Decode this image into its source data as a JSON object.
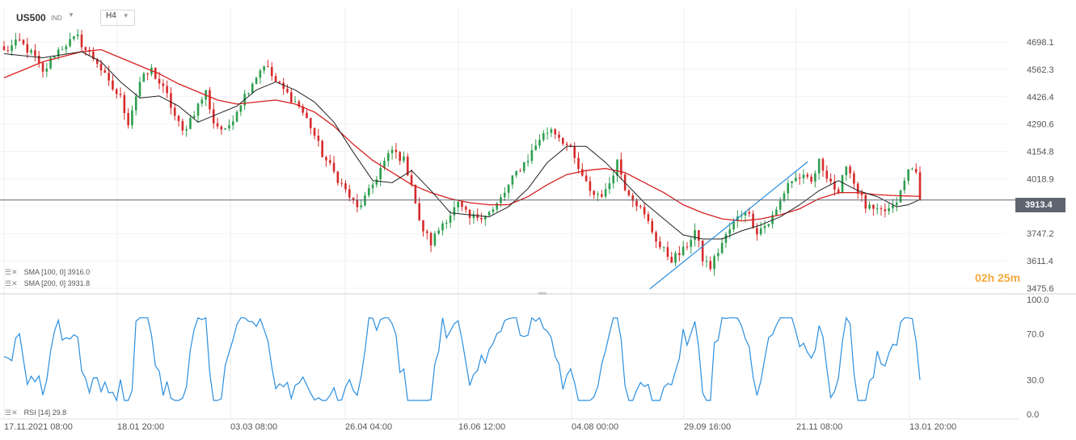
{
  "header": {
    "symbol": "US500",
    "exchange": "IND",
    "timeframe": "H4"
  },
  "price_tag": "3913.4",
  "countdown": "02h 25m",
  "indicators": {
    "sma100": "SMA [100, 0] 3916.0",
    "sma200": "SMA [200, 0] 3931.8",
    "rsi": "RSI [14] 29.8"
  },
  "colors": {
    "candle_up": "#2e9e4f",
    "candle_down": "#d62b2b",
    "sma100": "#222222",
    "sma200": "#d62020",
    "trendline": "#2a8fe0",
    "rsi": "#2a8fe0",
    "price_line": "#5e6470",
    "countdown": "#f2a93b"
  },
  "chart_data": [
    {
      "type": "candlestick",
      "symbol": "US500",
      "timeframe": "H4",
      "y_ticks": [
        4698.1,
        4562.3,
        4426.4,
        4290.6,
        4154.8,
        4018.9,
        3883.1,
        3747.2,
        3611.4,
        3475.6
      ],
      "y_tick_labels": [
        "4698.1",
        "4562.3",
        "4426.4",
        "4290.6",
        "4154.8",
        "4018.9",
        "3883.1",
        "3747.2",
        "3611.4",
        "3475.6"
      ],
      "x_tick_labels": [
        "17.11.2021 08:00",
        "18.01 20:00",
        "03.03 08:00",
        "26.04 04:00",
        "16.06 12:00",
        "04.08 00:00",
        "29.09 16:00",
        "21.11 08:00",
        "13.01 20:00"
      ],
      "last_price": 3913.4,
      "close_path": [
        [
          0,
          4650
        ],
        [
          4,
          4700
        ],
        [
          8,
          4620
        ],
        [
          10,
          4540
        ],
        [
          13,
          4640
        ],
        [
          16,
          4690
        ],
        [
          19,
          4720
        ],
        [
          21,
          4660
        ],
        [
          24,
          4600
        ],
        [
          27,
          4490
        ],
        [
          30,
          4420
        ],
        [
          32,
          4300
        ],
        [
          35,
          4500
        ],
        [
          38,
          4560
        ],
        [
          42,
          4430
        ],
        [
          44,
          4330
        ],
        [
          46,
          4250
        ],
        [
          49,
          4350
        ],
        [
          52,
          4450
        ],
        [
          54,
          4300
        ],
        [
          57,
          4250
        ],
        [
          61,
          4400
        ],
        [
          64,
          4500
        ],
        [
          67,
          4590
        ],
        [
          70,
          4500
        ],
        [
          73,
          4440
        ],
        [
          76,
          4380
        ],
        [
          79,
          4280
        ],
        [
          82,
          4140
        ],
        [
          85,
          4050
        ],
        [
          88,
          3960
        ],
        [
          91,
          3870
        ],
        [
          94,
          3950
        ],
        [
          97,
          4070
        ],
        [
          100,
          4160
        ],
        [
          103,
          4110
        ],
        [
          105,
          4000
        ],
        [
          107,
          3800
        ],
        [
          110,
          3700
        ],
        [
          113,
          3800
        ],
        [
          117,
          3890
        ],
        [
          120,
          3820
        ],
        [
          123,
          3840
        ],
        [
          126,
          3860
        ],
        [
          129,
          3950
        ],
        [
          132,
          4050
        ],
        [
          135,
          4120
        ],
        [
          138,
          4220
        ],
        [
          141,
          4270
        ],
        [
          144,
          4210
        ],
        [
          146,
          4160
        ],
        [
          149,
          4020
        ],
        [
          152,
          3940
        ],
        [
          155,
          3950
        ],
        [
          158,
          4110
        ],
        [
          160,
          3980
        ],
        [
          163,
          3900
        ],
        [
          166,
          3800
        ],
        [
          169,
          3680
        ],
        [
          172,
          3620
        ],
        [
          175,
          3660
        ],
        [
          178,
          3760
        ],
        [
          180,
          3620
        ],
        [
          182,
          3580
        ],
        [
          185,
          3700
        ],
        [
          188,
          3800
        ],
        [
          191,
          3870
        ],
        [
          194,
          3760
        ],
        [
          197,
          3800
        ],
        [
          199,
          3860
        ],
        [
          202,
          4000
        ],
        [
          205,
          4030
        ],
        [
          208,
          4000
        ],
        [
          210,
          4100
        ],
        [
          213,
          4010
        ],
        [
          215,
          3930
        ],
        [
          217,
          4100
        ],
        [
          219,
          4000
        ],
        [
          222,
          3880
        ],
        [
          225,
          3850
        ],
        [
          227,
          3860
        ],
        [
          229,
          3870
        ],
        [
          231,
          3950
        ],
        [
          233,
          4060
        ],
        [
          235,
          4070
        ],
        [
          236,
          3920
        ]
      ],
      "sma100_path": [
        [
          0,
          4640
        ],
        [
          10,
          4620
        ],
        [
          20,
          4650
        ],
        [
          25,
          4600
        ],
        [
          30,
          4500
        ],
        [
          35,
          4420
        ],
        [
          40,
          4430
        ],
        [
          45,
          4380
        ],
        [
          50,
          4300
        ],
        [
          55,
          4340
        ],
        [
          60,
          4380
        ],
        [
          65,
          4460
        ],
        [
          70,
          4500
        ],
        [
          75,
          4460
        ],
        [
          80,
          4400
        ],
        [
          85,
          4300
        ],
        [
          90,
          4150
        ],
        [
          95,
          4010
        ],
        [
          100,
          4000
        ],
        [
          105,
          4060
        ],
        [
          110,
          3960
        ],
        [
          115,
          3850
        ],
        [
          120,
          3840
        ],
        [
          125,
          3830
        ],
        [
          130,
          3880
        ],
        [
          135,
          3970
        ],
        [
          140,
          4100
        ],
        [
          145,
          4180
        ],
        [
          150,
          4180
        ],
        [
          155,
          4100
        ],
        [
          160,
          4000
        ],
        [
          165,
          3900
        ],
        [
          170,
          3820
        ],
        [
          175,
          3740
        ],
        [
          180,
          3720
        ],
        [
          185,
          3720
        ],
        [
          190,
          3760
        ],
        [
          195,
          3790
        ],
        [
          200,
          3830
        ],
        [
          205,
          3890
        ],
        [
          210,
          3960
        ],
        [
          215,
          4010
        ],
        [
          220,
          3960
        ],
        [
          225,
          3930
        ],
        [
          230,
          3880
        ],
        [
          233,
          3890
        ],
        [
          236,
          3916
        ]
      ],
      "sma200_path": [
        [
          0,
          4520
        ],
        [
          10,
          4600
        ],
        [
          20,
          4650
        ],
        [
          25,
          4660
        ],
        [
          30,
          4620
        ],
        [
          35,
          4580
        ],
        [
          40,
          4540
        ],
        [
          45,
          4490
        ],
        [
          50,
          4450
        ],
        [
          55,
          4410
        ],
        [
          60,
          4390
        ],
        [
          65,
          4400
        ],
        [
          70,
          4410
        ],
        [
          75,
          4390
        ],
        [
          80,
          4350
        ],
        [
          85,
          4280
        ],
        [
          90,
          4190
        ],
        [
          95,
          4110
        ],
        [
          100,
          4050
        ],
        [
          105,
          3990
        ],
        [
          110,
          3950
        ],
        [
          115,
          3920
        ],
        [
          120,
          3900
        ],
        [
          125,
          3890
        ],
        [
          130,
          3890
        ],
        [
          135,
          3930
        ],
        [
          140,
          3990
        ],
        [
          145,
          4040
        ],
        [
          150,
          4060
        ],
        [
          155,
          4070
        ],
        [
          160,
          4050
        ],
        [
          165,
          4000
        ],
        [
          170,
          3950
        ],
        [
          175,
          3890
        ],
        [
          180,
          3850
        ],
        [
          185,
          3820
        ],
        [
          190,
          3810
        ],
        [
          195,
          3820
        ],
        [
          200,
          3840
        ],
        [
          205,
          3870
        ],
        [
          210,
          3920
        ],
        [
          215,
          3950
        ],
        [
          220,
          3950
        ],
        [
          225,
          3940
        ],
        [
          230,
          3935
        ],
        [
          236,
          3931.8
        ]
      ],
      "trendline": [
        [
          166.4,
          3472
        ],
        [
          200,
          3790
        ],
        [
          207.1,
          4104
        ]
      ],
      "annotations": [
        "SMA [100, 0] 3916.0",
        "SMA [200, 0] 3931.8"
      ]
    },
    {
      "type": "line",
      "name": "RSI [14]",
      "ylim": [
        0,
        100
      ],
      "y_ticks": [
        100.0,
        70.0,
        30.0,
        0.0
      ],
      "y_tick_labels": [
        "100.0",
        "70.0",
        "30.0",
        "0.0"
      ],
      "last_value": 29.8
    }
  ]
}
